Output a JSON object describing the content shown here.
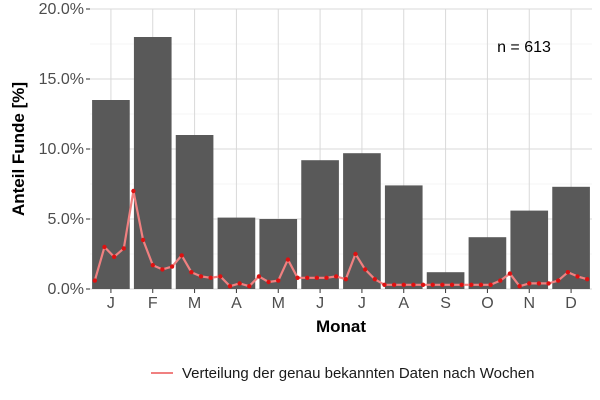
{
  "chart_data": {
    "type": "bar",
    "xlabel": "Monat",
    "ylabel": "Anteil Funde [%]",
    "ylim": [
      0,
      20
    ],
    "yticks": [
      "0.0%",
      "5.0%",
      "10.0%",
      "15.0%",
      "20.0%"
    ],
    "grid": true,
    "annotation": "n = 613",
    "categories": [
      "J",
      "F",
      "M",
      "A",
      "M",
      "J",
      "J",
      "A",
      "S",
      "O",
      "N",
      "D"
    ],
    "values": [
      13.5,
      18.0,
      11.0,
      5.1,
      5.0,
      9.2,
      9.7,
      7.4,
      1.2,
      3.7,
      5.6,
      7.3
    ],
    "bar_color": "#595959",
    "line_series": {
      "name": "Verteilung der genau bekannten Daten nach Wochen",
      "color": "#f08080",
      "point_color": "#dd1111",
      "x_weeks": [
        1,
        2,
        3,
        4,
        5,
        6,
        7,
        8,
        9,
        10,
        11,
        12,
        13,
        14,
        15,
        16,
        17,
        18,
        19,
        20,
        21,
        22,
        23,
        24,
        25,
        26,
        27,
        28,
        29,
        30,
        31,
        32,
        33,
        34,
        35,
        36,
        37,
        38,
        39,
        40,
        41,
        42,
        43,
        44,
        45,
        46,
        47,
        48,
        49,
        50,
        51,
        52
      ],
      "values": [
        0.6,
        3.0,
        2.3,
        2.9,
        7.0,
        3.5,
        1.7,
        1.4,
        1.6,
        2.4,
        1.2,
        0.9,
        0.8,
        0.9,
        0.2,
        0.4,
        0.2,
        0.9,
        0.5,
        0.6,
        2.1,
        0.8,
        0.8,
        0.8,
        0.8,
        0.9,
        0.7,
        2.5,
        1.4,
        0.7,
        0.3,
        0.3,
        0.3,
        0.3,
        0.3,
        0.3,
        0.3,
        0.3,
        0.3,
        0.3,
        0.3,
        0.3,
        0.6,
        1.1,
        0.2,
        0.4,
        0.4,
        0.4,
        0.6,
        1.2,
        0.9,
        0.7
      ]
    },
    "legend": {
      "position": "bottom"
    }
  }
}
